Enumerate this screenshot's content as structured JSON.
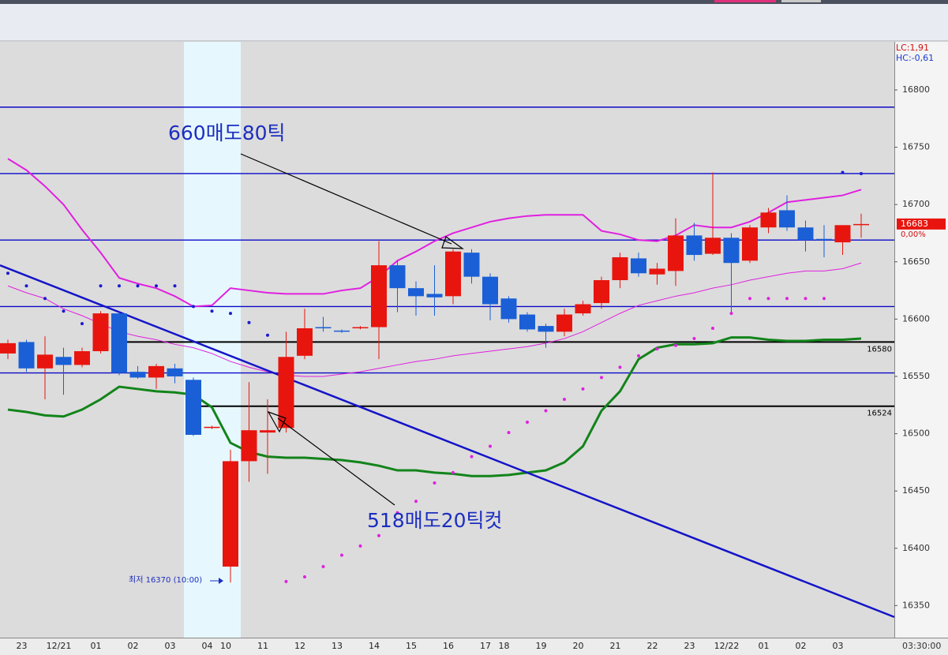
{
  "chart_data": {
    "type": "candlestick",
    "categories": [
      null,
      "23",
      null,
      "12/21",
      null,
      "01",
      null,
      "02",
      null,
      "03",
      null,
      "04",
      "10",
      null,
      "11",
      null,
      "12",
      null,
      "13",
      null,
      "14",
      null,
      "15",
      null,
      "16",
      null,
      "17",
      "18",
      null,
      "19",
      null,
      "20",
      null,
      "21",
      null,
      "22",
      null,
      "23",
      null,
      "12/22",
      null,
      "01",
      null,
      "02",
      null,
      "03",
      null
    ],
    "open": [
      16570,
      16580,
      16557,
      16567,
      16560,
      16572,
      16605,
      16554,
      16549,
      16557,
      16547,
      16505,
      16384,
      16476,
      16501,
      16505,
      16568,
      16593,
      16590,
      16592,
      16593,
      16647,
      16627,
      16622,
      16620,
      16658,
      16637,
      16618,
      16604,
      16594,
      16589,
      16605,
      16614,
      16634,
      16653,
      16639,
      16642,
      16673,
      16657,
      16671,
      16651,
      16680,
      16695,
      16680,
      16670,
      16667,
      16682
    ],
    "high": [
      16582,
      16582,
      16585,
      16575,
      16575,
      16607,
      16606,
      16559,
      16561,
      16561,
      16549,
      16507,
      16486,
      16545,
      16530,
      16589,
      16609,
      16602,
      16591,
      16594,
      16668,
      16651,
      16633,
      16647,
      16661,
      16661,
      16640,
      16620,
      16606,
      16596,
      16609,
      16616,
      16637,
      16658,
      16658,
      16649,
      16688,
      16684,
      16728,
      16675,
      16682,
      16697,
      16708,
      16686,
      16682,
      16682,
      16692
    ],
    "low": [
      16565,
      16554,
      16530,
      16534,
      16558,
      16570,
      16551,
      16548,
      16539,
      16544,
      16498,
      16504,
      16370,
      16458,
      16465,
      16501,
      16565,
      16589,
      16588,
      16591,
      16565,
      16606,
      16603,
      16603,
      16613,
      16631,
      16599,
      16597,
      16589,
      16575,
      16585,
      16603,
      16609,
      16627,
      16637,
      16630,
      16629,
      16651,
      16656,
      16606,
      16649,
      16675,
      16677,
      16659,
      16654,
      16656,
      16671
    ],
    "close": [
      16579,
      16557,
      16569,
      16560,
      16572,
      16605,
      16553,
      16549,
      16559,
      16550,
      16499,
      16506,
      16476,
      16503,
      16503,
      16567,
      16592,
      16592,
      16589,
      16593,
      16647,
      16627,
      16620,
      16619,
      16659,
      16637,
      16613,
      16600,
      16591,
      16589,
      16604,
      16613,
      16634,
      16654,
      16640,
      16644,
      16673,
      16656,
      16671,
      16649,
      16680,
      16693,
      16680,
      16669,
      16669,
      16682,
      16683
    ],
    "up_color": "#e8150e",
    "down_color": "#1a5fd6",
    "ylim": [
      16322,
      16842
    ],
    "yticks": [
      16350,
      16400,
      16450,
      16500,
      16550,
      16600,
      16650,
      16700,
      16750,
      16800
    ],
    "overlays": [
      {
        "color": "#e020e0",
        "width": 2,
        "values": [
          16740,
          16730,
          16716,
          16700,
          16678,
          16658,
          16636,
          16631,
          16627,
          16620,
          16611,
          16612,
          16627,
          16625,
          16623,
          16622,
          16622,
          16622,
          16625,
          16627,
          16637,
          16651,
          16659,
          16668,
          16675,
          16680,
          16685,
          16688,
          16690,
          16691,
          16691,
          16691,
          16677,
          16674,
          16669,
          16668,
          16673,
          16682,
          16680,
          16680,
          16685,
          16693,
          16702,
          16704,
          16706,
          16708,
          16713
        ]
      },
      {
        "color": "#e020e0",
        "width": 1,
        "values": [
          16629,
          16623,
          16618,
          16609,
          16603,
          16596,
          16589,
          16585,
          16582,
          16578,
          16575,
          16570,
          16563,
          16558,
          16554,
          16551,
          16550,
          16550,
          16552,
          16554,
          16557,
          16560,
          16563,
          16565,
          16568,
          16570,
          16572,
          16574,
          16576,
          16579,
          16583,
          16589,
          16597,
          16605,
          16612,
          16616,
          16620,
          16623,
          16627,
          16630,
          16634,
          16637,
          16640,
          16642,
          16642,
          16644,
          16649
        ]
      },
      {
        "color": "#12841a",
        "width": 3,
        "values": [
          16521,
          16519,
          16516,
          16515,
          16521,
          16530,
          16541,
          16539,
          16537,
          16536,
          16534,
          16523,
          16492,
          16484,
          16480,
          16479,
          16479,
          16478,
          16477,
          16475,
          16472,
          16468,
          16468,
          16466,
          16465,
          16463,
          16463,
          16464,
          16466,
          16468,
          16475,
          16489,
          16520,
          16537,
          16565,
          16575,
          16578,
          16578,
          16579,
          16584,
          16584,
          16582,
          16581,
          16581,
          16582,
          16582,
          16583
        ]
      }
    ],
    "sar": [
      16640,
      16629,
      16618,
      16607,
      16596,
      16629,
      16629,
      16629,
      16629,
      16629,
      16611,
      16607,
      16605,
      16597,
      16586,
      16371,
      16375,
      16384,
      16394,
      16402,
      16411,
      16431,
      16441,
      16457,
      16466,
      16480,
      16489,
      16501,
      16510,
      16520,
      16530,
      16539,
      16549,
      16558,
      16568,
      16574,
      16577,
      16583,
      16592,
      16605,
      16618,
      16618,
      16618,
      16618,
      16618,
      16728,
      16727
    ],
    "sar_above_color": "#1a1ad0",
    "sar_below_color": "#e020e0",
    "levels": [
      16785,
      16727,
      16669,
      16611,
      16553
    ],
    "level_color": "#0a0ac8",
    "black_lines": [
      {
        "value": 16580,
        "start": 6
      },
      {
        "value": 16524,
        "start": 10
      }
    ],
    "trendline": {
      "start": 16647,
      "end": 16340,
      "color": "#1414c8"
    },
    "annotations": [
      "660매도80틱",
      "518매도20틱컷"
    ],
    "low_note": "최저 16370 (10:00)",
    "lc": "LC:1,91",
    "hc": "HC:-0,61",
    "change": "0,00%",
    "time": "03:30:00"
  }
}
